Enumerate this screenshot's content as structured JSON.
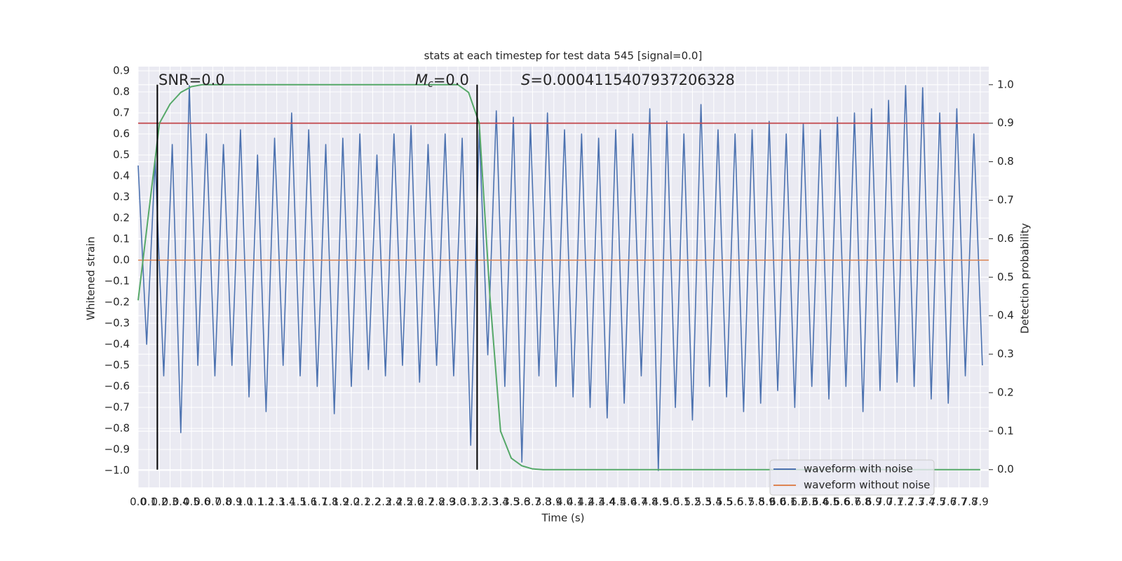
{
  "chart_data": {
    "type": "line",
    "title": "stats at each timestep for test data 545 [signal=0.0]",
    "x_label": "Time (s)",
    "y_label": "Whitened strain",
    "y2_label": "Detection probability",
    "annotations": {
      "snr": "SNR=0.0",
      "mc": {
        "symbol": "M",
        "subscript": "c",
        "value_text": "=0.0"
      },
      "s": {
        "symbol": "S",
        "value_text": "=0.0004115407937206328"
      }
    },
    "xlim": [
      0,
      7.98
    ],
    "ylim": [
      -1.08,
      0.92
    ],
    "y2lim": [
      -0.046,
      1.047
    ],
    "xticks": [
      {
        "value": 0,
        "label": "0.0"
      },
      0.1,
      0.2,
      0.3,
      0.4,
      0.5,
      0.6,
      0.7,
      0.8,
      0.9,
      {
        "value": 1,
        "label": "1.0"
      },
      1.1,
      1.2,
      1.3,
      1.4,
      1.5,
      1.6,
      1.7,
      1.8,
      1.9,
      {
        "value": 2,
        "label": "2.0"
      },
      2.1,
      2.2,
      2.3,
      2.4,
      2.5,
      2.6,
      2.7,
      2.8,
      2.9,
      {
        "value": 3,
        "label": "3.0"
      },
      3.1,
      3.2,
      3.3,
      3.4,
      3.5,
      3.6,
      3.7,
      3.8,
      3.9,
      {
        "value": 4,
        "label": "4.0"
      },
      4.1,
      4.2,
      4.3,
      4.4,
      4.5,
      4.6,
      4.7,
      4.8,
      4.9,
      {
        "value": 5,
        "label": "5.0"
      },
      5.1,
      5.2,
      5.3,
      5.4,
      5.5,
      5.6,
      5.7,
      5.8,
      5.9,
      {
        "value": 6,
        "label": "6.0"
      },
      6.1,
      6.2,
      6.3,
      6.4,
      6.5,
      6.6,
      6.7,
      6.8,
      6.9,
      {
        "value": 7,
        "label": "7.0"
      },
      7.1,
      7.2,
      7.3,
      7.4,
      7.5,
      7.6,
      7.7,
      7.8,
      7.9
    ],
    "yticks": [
      {
        "value": -1.0,
        "label": "−1.0"
      },
      {
        "value": -0.9,
        "label": "−0.9"
      },
      {
        "value": -0.8,
        "label": "−0.8"
      },
      {
        "value": -0.7,
        "label": "−0.7"
      },
      {
        "value": -0.6,
        "label": "−0.6"
      },
      {
        "value": -0.5,
        "label": "−0.5"
      },
      {
        "value": -0.4,
        "label": "−0.4"
      },
      {
        "value": -0.3,
        "label": "−0.3"
      },
      {
        "value": -0.2,
        "label": "−0.2"
      },
      {
        "value": -0.1,
        "label": "−0.1"
      },
      {
        "value": 0,
        "label": "0.0"
      },
      0.1,
      0.2,
      0.3,
      0.4,
      0.5,
      0.6,
      0.7,
      0.8,
      0.9
    ],
    "y2ticks": [
      {
        "value": 0,
        "label": "0.0"
      },
      0.1,
      0.2,
      0.3,
      0.4,
      0.5,
      0.6,
      0.7,
      0.8,
      0.9,
      {
        "value": 1,
        "label": "1.0"
      }
    ],
    "grid": true,
    "legend": "lower right",
    "series": [
      {
        "name": "waveform with noise",
        "color": "#4c72b0",
        "x": [
          0,
          0.08,
          0.16,
          0.24,
          0.32,
          0.4,
          0.48,
          0.56,
          0.64,
          0.72,
          0.8,
          0.88,
          0.96,
          1.04,
          1.12,
          1.2,
          1.28,
          1.36,
          1.44,
          1.52,
          1.6,
          1.68,
          1.76,
          1.84,
          1.92,
          2,
          2.08,
          2.16,
          2.24,
          2.32,
          2.4,
          2.48,
          2.56,
          2.64,
          2.72,
          2.8,
          2.88,
          2.96,
          3.04,
          3.12,
          3.2,
          3.28,
          3.36,
          3.44,
          3.52,
          3.6,
          3.68,
          3.76,
          3.84,
          3.92,
          4,
          4.08,
          4.16,
          4.24,
          4.32,
          4.4,
          4.48,
          4.56,
          4.64,
          4.72,
          4.8,
          4.88,
          4.96,
          5.04,
          5.12,
          5.2,
          5.28,
          5.36,
          5.44,
          5.52,
          5.6,
          5.68,
          5.76,
          5.84,
          5.92,
          6,
          6.08,
          6.16,
          6.24,
          6.32,
          6.4,
          6.48,
          6.56,
          6.64,
          6.72,
          6.8,
          6.88,
          6.96,
          7.04,
          7.12,
          7.2,
          7.28,
          7.36,
          7.44,
          7.52,
          7.6,
          7.68,
          7.76,
          7.84,
          7.92
        ],
        "values": [
          0.45,
          -0.4,
          0.48,
          -0.55,
          0.55,
          -0.82,
          0.83,
          -0.5,
          0.6,
          -0.55,
          0.55,
          -0.5,
          0.62,
          -0.65,
          0.5,
          -0.72,
          0.58,
          -0.5,
          0.7,
          -0.55,
          0.62,
          -0.6,
          0.55,
          -0.73,
          0.58,
          -0.6,
          0.6,
          -0.52,
          0.5,
          -0.55,
          0.6,
          -0.5,
          0.64,
          -0.58,
          0.55,
          -0.5,
          0.6,
          -0.55,
          0.58,
          -0.88,
          0.62,
          -0.45,
          0.71,
          -0.6,
          0.68,
          -0.96,
          0.65,
          -0.55,
          0.7,
          -0.6,
          0.62,
          -0.65,
          0.6,
          -0.7,
          0.58,
          -0.75,
          0.62,
          -0.68,
          0.6,
          -0.55,
          0.72,
          -1.0,
          0.66,
          -0.7,
          0.6,
          -0.76,
          0.74,
          -0.6,
          0.62,
          -0.65,
          0.6,
          -0.72,
          0.62,
          -0.68,
          0.66,
          -0.62,
          0.6,
          -0.7,
          0.65,
          -0.6,
          0.62,
          -0.66,
          0.68,
          -0.6,
          0.7,
          -0.72,
          0.72,
          -0.62,
          0.76,
          -0.58,
          0.83,
          -0.6,
          0.82,
          -0.66,
          0.7,
          -0.68,
          0.72,
          -0.55,
          0.6,
          -0.5
        ]
      },
      {
        "name": "waveform without noise",
        "color": "#dd8452",
        "x": [
          0,
          7.98
        ],
        "values": [
          0,
          0
        ]
      }
    ],
    "detection": {
      "color": "#55a868",
      "axis": "y2",
      "x": [
        0,
        0.1,
        0.2,
        0.3,
        0.4,
        0.5,
        0.6,
        3.0,
        3.1,
        3.2,
        3.3,
        3.4,
        3.5,
        3.6,
        3.7,
        3.8,
        7.9
      ],
      "values": [
        0.44,
        0.67,
        0.9,
        0.95,
        0.98,
        0.995,
        1.0,
        1.0,
        0.98,
        0.9,
        0.45,
        0.1,
        0.03,
        0.01,
        0.002,
        0.0,
        0.0
      ]
    },
    "threshold": {
      "value": 0.9,
      "axis": "y2",
      "color": "#c44e52"
    },
    "vlines": {
      "x": [
        0.18,
        3.18
      ],
      "ymin": 0,
      "ymax": 1,
      "axis": "y2",
      "color": "#000000"
    }
  }
}
